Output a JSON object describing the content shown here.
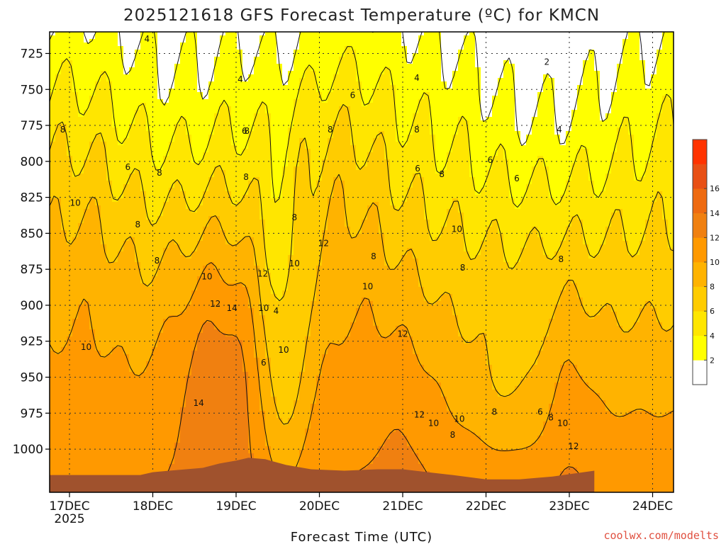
{
  "chart_data": {
    "type": "heatmap",
    "title": "2025121618 GFS Forecast Temperature (ºC) for KMCN",
    "xlabel": "Forecast Time (UTC)",
    "ylabel": "",
    "credit": "coolwx.com/modelts",
    "y_ticks": [
      "725",
      "750",
      "775",
      "800",
      "825",
      "850",
      "875",
      "900",
      "925",
      "950",
      "975",
      "1000"
    ],
    "y_range": [
      710,
      1030
    ],
    "x_ticks": [
      "17DEC",
      "18DEC",
      "19DEC",
      "20DEC",
      "21DEC",
      "22DEC",
      "23DEC",
      "24DEC"
    ],
    "x_year": "2025",
    "colorbar_ticks": [
      "2",
      "4",
      "6",
      "8",
      "10",
      "12",
      "14",
      "16"
    ],
    "colorbar_levels": [
      0,
      2,
      4,
      6,
      8,
      10,
      12,
      14,
      16,
      18
    ],
    "contour_labels": [
      {
        "text": "4",
        "time": 0.93,
        "p": 715
      },
      {
        "text": "4",
        "time": 2.05,
        "p": 743
      },
      {
        "text": "6",
        "time": 2.1,
        "p": 779
      },
      {
        "text": "6",
        "time": 0.7,
        "p": 804
      },
      {
        "text": "8",
        "time": -0.08,
        "p": 778
      },
      {
        "text": "8",
        "time": 1.08,
        "p": 808
      },
      {
        "text": "8",
        "time": 2.12,
        "p": 811
      },
      {
        "text": "8",
        "time": 2.13,
        "p": 779
      },
      {
        "text": "8",
        "time": 4.17,
        "p": 778
      },
      {
        "text": "8",
        "time": 3.13,
        "p": 778
      },
      {
        "text": "10",
        "time": 0.07,
        "p": 829
      },
      {
        "text": "8",
        "time": 0.82,
        "p": 844
      },
      {
        "text": "8",
        "time": 1.05,
        "p": 869
      },
      {
        "text": "10",
        "time": 1.65,
        "p": 880
      },
      {
        "text": "12",
        "time": 2.32,
        "p": 878
      },
      {
        "text": "6",
        "time": 3.4,
        "p": 754
      },
      {
        "text": "4",
        "time": 4.17,
        "p": 742
      },
      {
        "text": "2",
        "time": 5.73,
        "p": 731
      },
      {
        "text": "6",
        "time": 4.18,
        "p": 805
      },
      {
        "text": "8",
        "time": 4.47,
        "p": 809
      },
      {
        "text": "6",
        "time": 5.05,
        "p": 799
      },
      {
        "text": "6",
        "time": 5.37,
        "p": 812
      },
      {
        "text": "4",
        "time": 5.88,
        "p": 778
      },
      {
        "text": "8",
        "time": 2.7,
        "p": 839
      },
      {
        "text": "10",
        "time": 4.65,
        "p": 847
      },
      {
        "text": "12",
        "time": 3.05,
        "p": 857
      },
      {
        "text": "10",
        "time": 2.7,
        "p": 871
      },
      {
        "text": "8",
        "time": 3.65,
        "p": 866
      },
      {
        "text": "10",
        "time": 3.58,
        "p": 887
      },
      {
        "text": "8",
        "time": 4.72,
        "p": 874
      },
      {
        "text": "8",
        "time": 5.9,
        "p": 868
      },
      {
        "text": "12",
        "time": 1.75,
        "p": 899
      },
      {
        "text": "14",
        "time": 1.95,
        "p": 902
      },
      {
        "text": "10",
        "time": 2.33,
        "p": 902
      },
      {
        "text": "4",
        "time": 2.48,
        "p": 904
      },
      {
        "text": "12",
        "time": 4.0,
        "p": 920
      },
      {
        "text": "10",
        "time": 0.2,
        "p": 929
      },
      {
        "text": "10",
        "time": 2.57,
        "p": 931
      },
      {
        "text": "6",
        "time": 2.33,
        "p": 940
      },
      {
        "text": "14",
        "time": 1.55,
        "p": 968
      },
      {
        "text": "12",
        "time": 4.2,
        "p": 976
      },
      {
        "text": "10",
        "time": 4.37,
        "p": 982
      },
      {
        "text": "10",
        "time": 4.68,
        "p": 979
      },
      {
        "text": "8",
        "time": 5.1,
        "p": 974
      },
      {
        "text": "6",
        "time": 5.65,
        "p": 974
      },
      {
        "text": "8",
        "time": 5.78,
        "p": 978
      },
      {
        "text": "10",
        "time": 5.92,
        "p": 982
      },
      {
        "text": "8",
        "time": 4.6,
        "p": 990
      },
      {
        "text": "12",
        "time": 6.05,
        "p": 998
      }
    ]
  }
}
